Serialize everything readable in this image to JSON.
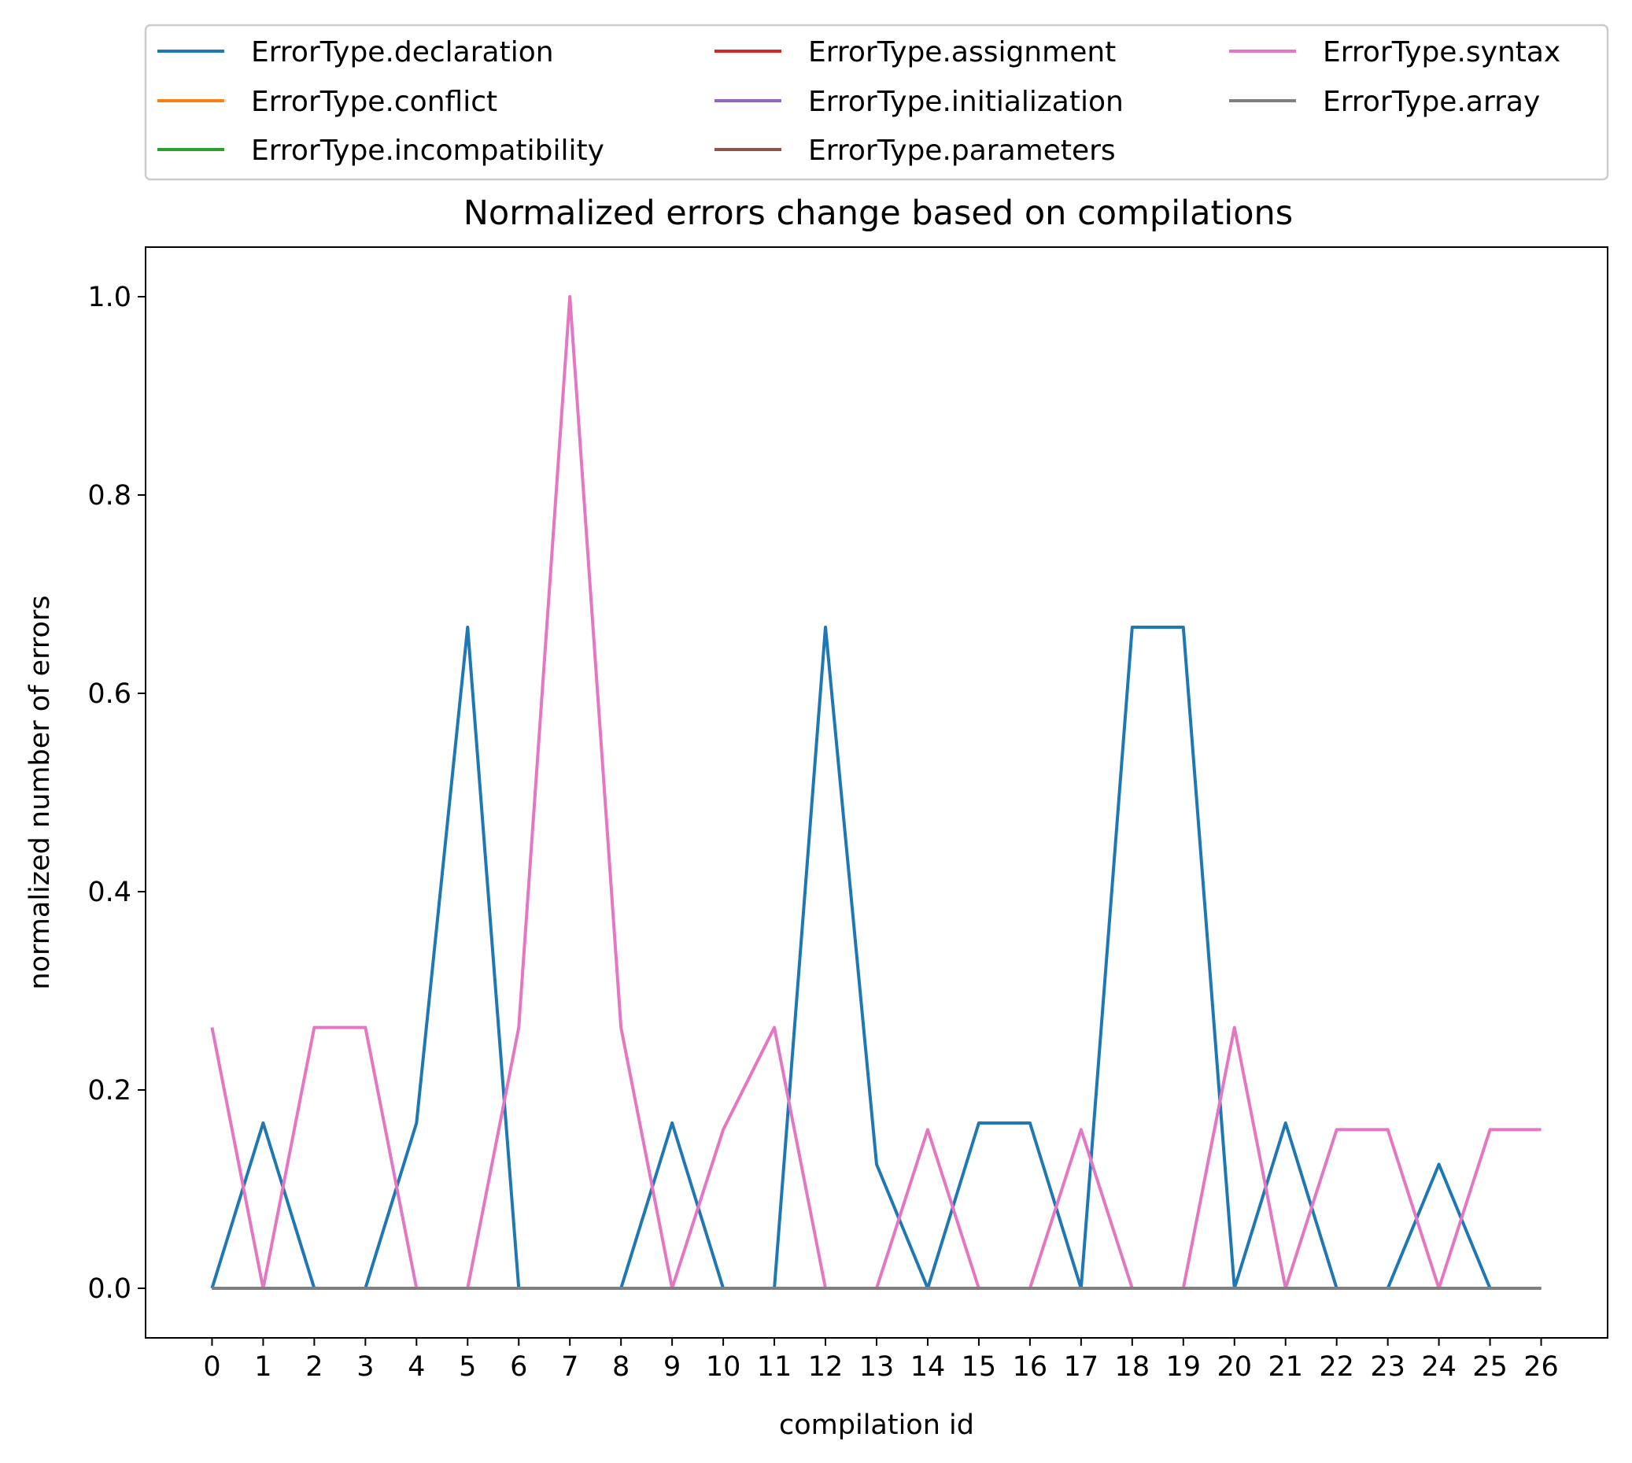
{
  "chart_data": {
    "type": "line",
    "title": "Normalized errors change based on compilations",
    "xlabel": "compilation id",
    "ylabel": "normalized number of errors",
    "x": [
      0,
      1,
      2,
      3,
      4,
      5,
      6,
      7,
      8,
      9,
      10,
      11,
      12,
      13,
      14,
      15,
      16,
      17,
      18,
      19,
      20,
      21,
      22,
      23,
      24,
      25,
      26
    ],
    "xlim": [
      -1.3,
      27.3
    ],
    "ylim": [
      -0.05,
      1.05
    ],
    "yticks": [
      0.0,
      0.2,
      0.4,
      0.6,
      0.8,
      1.0
    ],
    "ytick_labels": [
      "0.0",
      "0.2",
      "0.4",
      "0.6",
      "0.8",
      "1.0"
    ],
    "grid": false,
    "legend_position": "above-plot",
    "legend_columns": 3,
    "series": [
      {
        "name": "ErrorType.declaration",
        "color": "#1f77b4",
        "values": [
          0,
          0.1667,
          0,
          0,
          0.1667,
          0.6667,
          0,
          0,
          0,
          0.1667,
          0,
          0,
          0.6667,
          0.125,
          0,
          0.1667,
          0.1667,
          0,
          0.6667,
          0.6667,
          0,
          0.1667,
          0,
          0,
          0.125,
          0,
          0
        ]
      },
      {
        "name": "ErrorType.conflict",
        "color": "#ff7f0e",
        "values": [
          0,
          0,
          0,
          0,
          0,
          0,
          0,
          0,
          0,
          0,
          0,
          0,
          0,
          0,
          0,
          0,
          0,
          0,
          0,
          0,
          0,
          0,
          0,
          0,
          0,
          0,
          0
        ]
      },
      {
        "name": "ErrorType.incompatibility",
        "color": "#2ca02c",
        "values": [
          0,
          0,
          0,
          0,
          0,
          0,
          0,
          0,
          0,
          0,
          0,
          0,
          0,
          0,
          0,
          0,
          0,
          0,
          0,
          0,
          0,
          0,
          0,
          0,
          0,
          0,
          0
        ]
      },
      {
        "name": "ErrorType.assignment",
        "color": "#d62728",
        "values": [
          0,
          0,
          0,
          0,
          0,
          0,
          0,
          0,
          0,
          0,
          0,
          0,
          0,
          0,
          0,
          0,
          0,
          0,
          0,
          0,
          0,
          0,
          0,
          0,
          0,
          0,
          0
        ]
      },
      {
        "name": "ErrorType.initialization",
        "color": "#9467bd",
        "values": [
          0,
          0,
          0,
          0,
          0,
          0,
          0,
          0,
          0,
          0,
          0,
          0,
          0,
          0,
          0,
          0,
          0,
          0,
          0,
          0,
          0,
          0,
          0,
          0,
          0,
          0,
          0
        ]
      },
      {
        "name": "ErrorType.parameters",
        "color": "#8c564b",
        "values": [
          0,
          0,
          0,
          0,
          0,
          0,
          0,
          0,
          0,
          0,
          0,
          0,
          0,
          0,
          0,
          0,
          0,
          0,
          0,
          0,
          0,
          0,
          0,
          0,
          0,
          0,
          0
        ]
      },
      {
        "name": "ErrorType.syntax",
        "color": "#e377c2",
        "values": [
          0.263,
          0,
          0.263,
          0.263,
          0,
          0,
          0.263,
          1.0,
          0.263,
          0,
          0.16,
          0.263,
          0,
          0,
          0.16,
          0,
          0,
          0.16,
          0,
          0,
          0.263,
          0,
          0.16,
          0.16,
          0,
          0.16,
          0.16
        ]
      },
      {
        "name": "ErrorType.array",
        "color": "#7f7f7f",
        "values": [
          0,
          0,
          0,
          0,
          0,
          0,
          0,
          0,
          0,
          0,
          0,
          0,
          0,
          0,
          0,
          0,
          0,
          0,
          0,
          0,
          0,
          0,
          0,
          0,
          0,
          0,
          0
        ]
      }
    ]
  }
}
